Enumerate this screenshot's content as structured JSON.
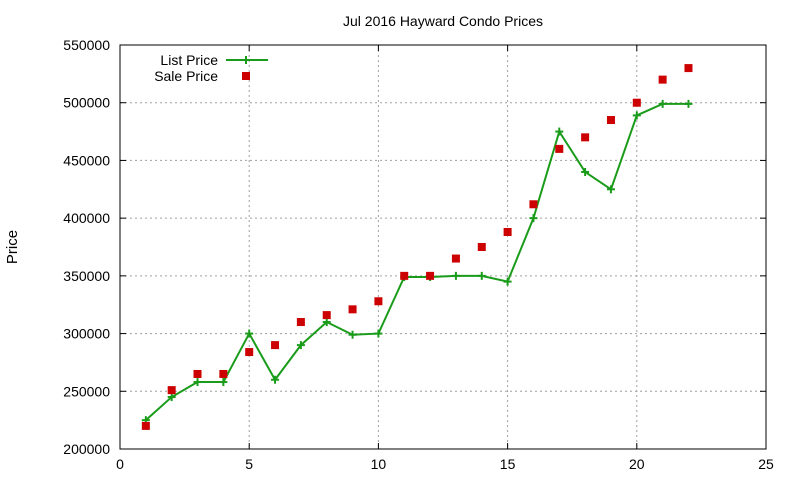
{
  "chart_data": {
    "type": "line",
    "title": "Jul 2016 Hayward Condo Prices",
    "xlabel": "",
    "ylabel": "Price",
    "xlim": [
      0,
      25
    ],
    "ylim": [
      200000,
      550000
    ],
    "xticks": [
      0,
      5,
      10,
      15,
      20,
      25
    ],
    "yticks": [
      200000,
      250000,
      300000,
      350000,
      400000,
      450000,
      500000,
      550000
    ],
    "xtick_labels": [
      "0",
      "5",
      "10",
      "15",
      "20",
      "25"
    ],
    "ytick_labels": [
      "200000",
      "250000",
      "300000",
      "350000",
      "400000",
      "450000",
      "500000",
      "550000"
    ],
    "grid": true,
    "legend_position": "top-left",
    "series": [
      {
        "name": "List Price",
        "style": "line-plus",
        "color": "#1a9c1a",
        "x": [
          1,
          2,
          3,
          4,
          5,
          6,
          7,
          8,
          9,
          10,
          11,
          12,
          13,
          14,
          15,
          16,
          17,
          18,
          19,
          20,
          21,
          22
        ],
        "y": [
          225000,
          245000,
          258000,
          258000,
          300000,
          260000,
          290000,
          310000,
          299000,
          300000,
          349000,
          349000,
          350000,
          350000,
          345000,
          400000,
          475000,
          440000,
          425000,
          489000,
          499000,
          499000
        ]
      },
      {
        "name": "Sale Price",
        "style": "square",
        "color": "#cc0000",
        "x": [
          1,
          2,
          3,
          4,
          5,
          6,
          7,
          8,
          9,
          10,
          11,
          12,
          13,
          14,
          15,
          16,
          17,
          18,
          19,
          20,
          21,
          22
        ],
        "y": [
          220000,
          251000,
          265000,
          265000,
          284000,
          290000,
          310000,
          316000,
          321000,
          328000,
          350000,
          350000,
          365000,
          375000,
          388000,
          412000,
          460000,
          470000,
          485000,
          500000,
          520000,
          530000
        ]
      }
    ]
  }
}
